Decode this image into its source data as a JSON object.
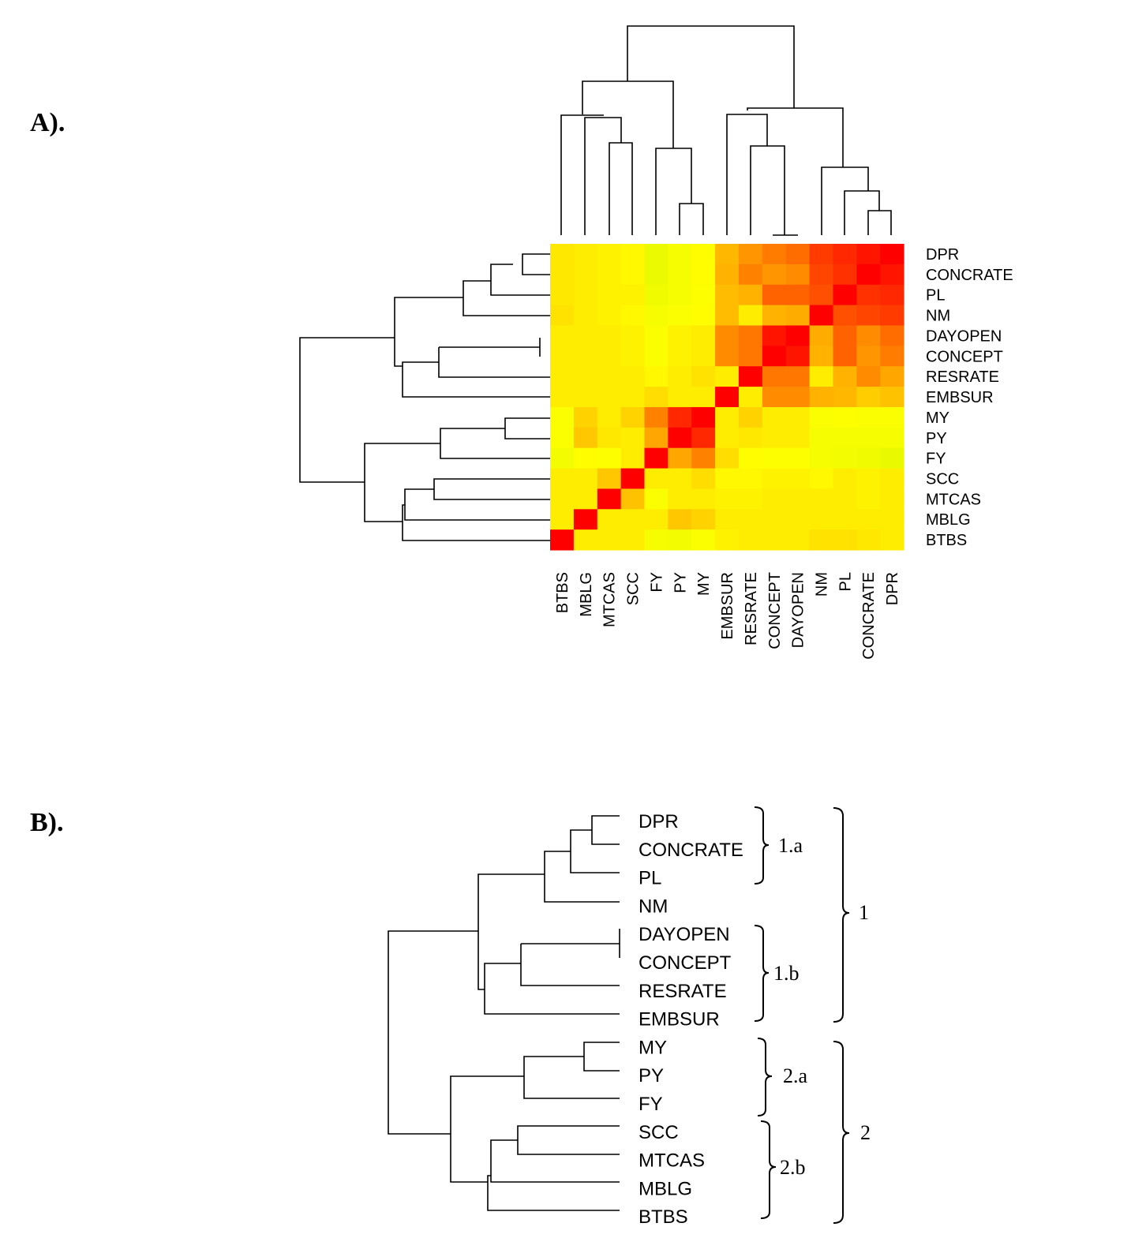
{
  "chart_data": [
    {
      "type": "heatmap",
      "panel_label": "A).",
      "title": "",
      "columns": [
        "BTBS",
        "MBLG",
        "MTCAS",
        "SCC",
        "FY",
        "PY",
        "MY",
        "EMBSUR",
        "RESRATE",
        "CONCEPT",
        "DAYOPEN",
        "NM",
        "PL",
        "CONCRATE",
        "DPR"
      ],
      "rows": [
        "DPR",
        "CONCRATE",
        "PL",
        "NM",
        "DAYOPEN",
        "CONCEPT",
        "RESRATE",
        "EMBSUR",
        "MY",
        "PY",
        "FY",
        "SCC",
        "MTCAS",
        "MBLG",
        "BTBS"
      ],
      "value_range": [
        0,
        1
      ],
      "color_scale": [
        "#c8f000",
        "#ffff00",
        "#ffa500",
        "#ff0000"
      ],
      "values": [
        [
          0.42,
          0.4,
          0.38,
          0.36,
          0.22,
          0.28,
          0.34,
          0.6,
          0.7,
          0.75,
          0.78,
          0.88,
          0.92,
          0.96,
          1.0
        ],
        [
          0.42,
          0.4,
          0.38,
          0.36,
          0.22,
          0.28,
          0.34,
          0.62,
          0.74,
          0.7,
          0.72,
          0.86,
          0.9,
          1.0,
          0.96
        ],
        [
          0.42,
          0.4,
          0.38,
          0.38,
          0.24,
          0.28,
          0.32,
          0.58,
          0.62,
          0.8,
          0.8,
          0.84,
          1.0,
          0.9,
          0.92
        ],
        [
          0.44,
          0.4,
          0.38,
          0.36,
          0.28,
          0.3,
          0.34,
          0.58,
          0.4,
          0.62,
          0.64,
          1.0,
          0.84,
          0.86,
          0.88
        ],
        [
          0.4,
          0.4,
          0.4,
          0.38,
          0.3,
          0.38,
          0.4,
          0.72,
          0.76,
          0.96,
          1.0,
          0.64,
          0.8,
          0.72,
          0.78
        ],
        [
          0.4,
          0.4,
          0.4,
          0.38,
          0.3,
          0.38,
          0.4,
          0.72,
          0.76,
          1.0,
          0.96,
          0.62,
          0.8,
          0.7,
          0.75
        ],
        [
          0.4,
          0.4,
          0.4,
          0.4,
          0.36,
          0.4,
          0.44,
          0.4,
          1.0,
          0.76,
          0.76,
          0.4,
          0.62,
          0.72,
          0.66
        ],
        [
          0.4,
          0.4,
          0.4,
          0.4,
          0.46,
          0.4,
          0.4,
          1.0,
          0.4,
          0.72,
          0.72,
          0.62,
          0.6,
          0.52,
          0.56
        ],
        [
          0.3,
          0.5,
          0.4,
          0.5,
          0.74,
          0.92,
          1.0,
          0.4,
          0.5,
          0.4,
          0.4,
          0.3,
          0.32,
          0.3,
          0.3
        ],
        [
          0.3,
          0.54,
          0.42,
          0.4,
          0.66,
          1.0,
          0.92,
          0.4,
          0.42,
          0.4,
          0.4,
          0.28,
          0.28,
          0.28,
          0.28
        ],
        [
          0.26,
          0.34,
          0.32,
          0.4,
          1.0,
          0.66,
          0.74,
          0.46,
          0.34,
          0.32,
          0.32,
          0.28,
          0.26,
          0.24,
          0.2
        ],
        [
          0.4,
          0.4,
          0.54,
          1.0,
          0.4,
          0.4,
          0.46,
          0.36,
          0.36,
          0.38,
          0.38,
          0.36,
          0.4,
          0.38,
          0.4
        ],
        [
          0.4,
          0.4,
          1.0,
          0.56,
          0.3,
          0.4,
          0.4,
          0.38,
          0.38,
          0.4,
          0.4,
          0.4,
          0.4,
          0.38,
          0.4
        ],
        [
          0.4,
          1.0,
          0.4,
          0.4,
          0.4,
          0.54,
          0.5,
          0.4,
          0.4,
          0.4,
          0.4,
          0.4,
          0.4,
          0.4,
          0.4
        ],
        [
          1.0,
          0.4,
          0.4,
          0.4,
          0.28,
          0.26,
          0.3,
          0.38,
          0.4,
          0.4,
          0.4,
          0.44,
          0.44,
          0.42,
          0.4
        ]
      ]
    },
    {
      "type": "dendrogram",
      "panel_label": "B).",
      "leaves": [
        "DPR",
        "CONCRATE",
        "PL",
        "NM",
        "DAYOPEN",
        "CONCEPT",
        "RESRATE",
        "EMBSUR",
        "MY",
        "PY",
        "FY",
        "SCC",
        "MTCAS",
        "MBLG",
        "BTBS"
      ],
      "clusters": [
        {
          "label": "1.a",
          "members": [
            "DPR",
            "CONCRATE",
            "PL"
          ]
        },
        {
          "label": "1.b",
          "members": [
            "DAYOPEN",
            "CONCEPT",
            "RESRATE",
            "EMBSUR"
          ]
        },
        {
          "label": "2.a",
          "members": [
            "MY",
            "PY",
            "FY"
          ]
        },
        {
          "label": "2.b",
          "members": [
            "SCC",
            "MTCAS",
            "MBLG",
            "BTBS"
          ]
        },
        {
          "label": "1",
          "members": [
            "DPR",
            "CONCRATE",
            "PL",
            "NM",
            "DAYOPEN",
            "CONCEPT",
            "RESRATE",
            "EMBSUR"
          ]
        },
        {
          "label": "2",
          "members": [
            "MY",
            "PY",
            "FY",
            "SCC",
            "MTCAS",
            "MBLG",
            "BTBS"
          ]
        }
      ]
    }
  ]
}
